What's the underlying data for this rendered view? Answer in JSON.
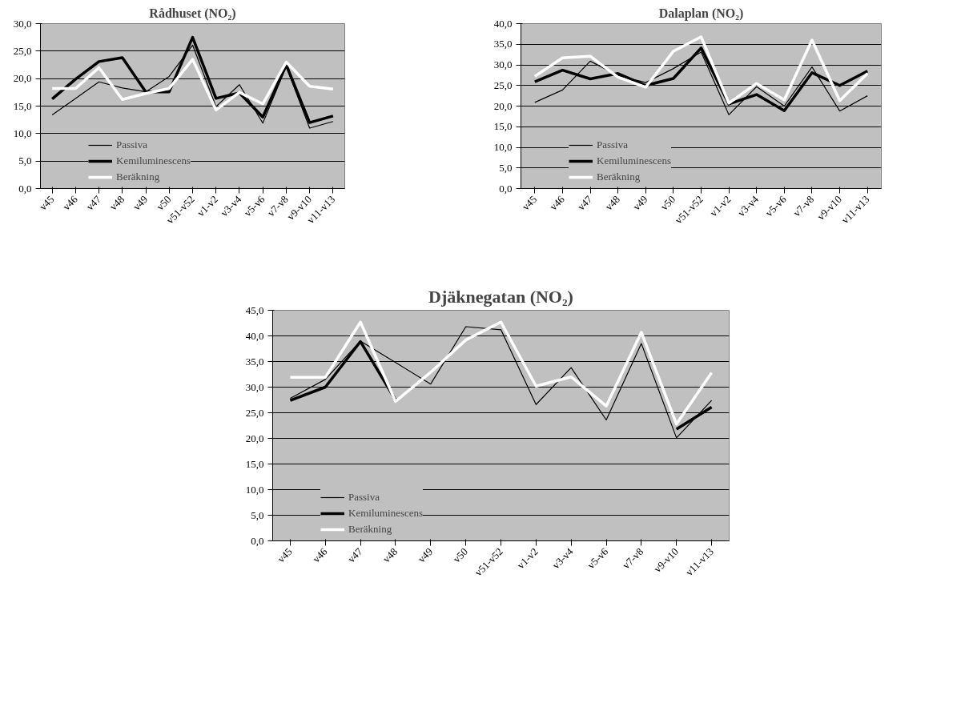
{
  "chart_data": [
    {
      "type": "line",
      "title": "Rådhuset (NO₂)",
      "categories": [
        "v45",
        "v46",
        "v47",
        "v48",
        "v49",
        "v50",
        "v51-v52",
        "v1-v2",
        "v3-v4",
        "v5-v6",
        "v7-v8",
        "v9-v10",
        "v11-v13"
      ],
      "ylim": [
        0,
        30
      ],
      "yticks": [
        {
          "value": 0,
          "label": "0,0"
        },
        {
          "value": 5,
          "label": "5,0"
        },
        {
          "value": 10,
          "label": "10,0"
        },
        {
          "value": 15,
          "label": "15,0"
        },
        {
          "value": 20,
          "label": "20,0"
        },
        {
          "value": 25,
          "label": "25,0"
        },
        {
          "value": 30,
          "label": "30,0"
        }
      ],
      "grid": "y",
      "legend": "bottom left",
      "series": [
        {
          "name": "Passiva",
          "color": "#000000",
          "values": [
            13.4,
            16.4,
            19.4,
            18.3,
            17.6,
            20.4,
            26.1,
            14.9,
            18.9,
            11.9,
            22.2,
            11.0,
            12.2
          ]
        },
        {
          "name": "Kemiluminescens",
          "color": "#000000",
          "values": [
            16.3,
            19.9,
            23.1,
            23.8,
            17.6,
            17.6,
            27.5,
            16.4,
            17.4,
            13.0,
            22.5,
            12.0,
            13.2
          ]
        },
        {
          "name": "Beräkning",
          "color": "#ffffff",
          "values": [
            18.2,
            18.2,
            22.0,
            16.2,
            17.3,
            18.2,
            23.5,
            14.3,
            17.5,
            15.4,
            23.0,
            18.6,
            18.1
          ]
        }
      ]
    },
    {
      "type": "line",
      "title": "Dalaplan (NO₂)",
      "categories": [
        "v45",
        "v46",
        "v47",
        "v48",
        "v49",
        "v50",
        "v51-v52",
        "v1-v2",
        "v3-v4",
        "v5-v6",
        "v7-v8",
        "v9-v10",
        "v11-v13"
      ],
      "ylim": [
        0,
        40
      ],
      "yticks": [
        {
          "value": 0,
          "label": "0,0"
        },
        {
          "value": 5,
          "label": "5,0"
        },
        {
          "value": 10,
          "label": "10,0"
        },
        {
          "value": 15,
          "label": "15,0"
        },
        {
          "value": 20,
          "label": "20,0"
        },
        {
          "value": 25,
          "label": "25,0"
        },
        {
          "value": 30,
          "label": "30,0"
        },
        {
          "value": 35,
          "label": "35,0"
        },
        {
          "value": 40,
          "label": "40,0"
        }
      ],
      "grid": "y",
      "legend": "bottom left",
      "series": [
        {
          "name": "Passiva",
          "color": "#000000",
          "values": [
            20.9,
            23.9,
            30.9,
            27.4,
            25.7,
            29.1,
            33.1,
            17.9,
            24.7,
            20.0,
            29.5,
            18.8,
            22.5
          ]
        },
        {
          "name": "Kemiluminescens",
          "color": "#000000",
          "values": [
            25.9,
            28.7,
            26.6,
            27.9,
            25.0,
            26.7,
            34.1,
            20.5,
            22.8,
            18.9,
            28.1,
            25.0,
            28.5
          ]
        },
        {
          "name": "Beräkning",
          "color": "#ffffff",
          "values": [
            27.2,
            31.7,
            32.1,
            27.0,
            24.6,
            33.3,
            36.8,
            20.7,
            25.5,
            21.5,
            36.0,
            21.3,
            27.9
          ]
        }
      ]
    },
    {
      "type": "line",
      "title": "Djäknegatan (NO₂)",
      "categories": [
        "v45",
        "v46",
        "v47",
        "v48",
        "v49",
        "v50",
        "v51-v52",
        "v1-v2",
        "v3-v4",
        "v5-v6",
        "v7-v8",
        "v9-v10",
        "v11-v13"
      ],
      "ylim": [
        0,
        45
      ],
      "yticks": [
        {
          "value": 0,
          "label": "0,0"
        },
        {
          "value": 5,
          "label": "5,0"
        },
        {
          "value": 10,
          "label": "10,0"
        },
        {
          "value": 15,
          "label": "15,0"
        },
        {
          "value": 20,
          "label": "20,0"
        },
        {
          "value": 25,
          "label": "25,0"
        },
        {
          "value": 30,
          "label": "30,0"
        },
        {
          "value": 35,
          "label": "35,0"
        },
        {
          "value": 40,
          "label": "40,0"
        },
        {
          "value": 45,
          "label": "45,0"
        }
      ],
      "grid": "y",
      "legend": "bottom left",
      "series": [
        {
          "name": "Passiva",
          "color": "#000000",
          "values": [
            27.8,
            31.5,
            39.0,
            34.8,
            30.6,
            41.8,
            41.2,
            26.6,
            33.8,
            23.6,
            38.5,
            20.1,
            27.4
          ]
        },
        {
          "name": "Kemiluminescens",
          "color": "#000000",
          "values": [
            27.4,
            30.0,
            38.9,
            27.5,
            null,
            null,
            null,
            null,
            null,
            null,
            null,
            21.8,
            26.1
          ]
        },
        {
          "name": "Beräkning",
          "color": "#ffffff",
          "values": [
            31.9,
            31.9,
            42.7,
            27.2,
            32.9,
            39.2,
            42.7,
            30.2,
            32.0,
            26.3,
            40.7,
            22.8,
            32.8
          ]
        }
      ]
    }
  ]
}
